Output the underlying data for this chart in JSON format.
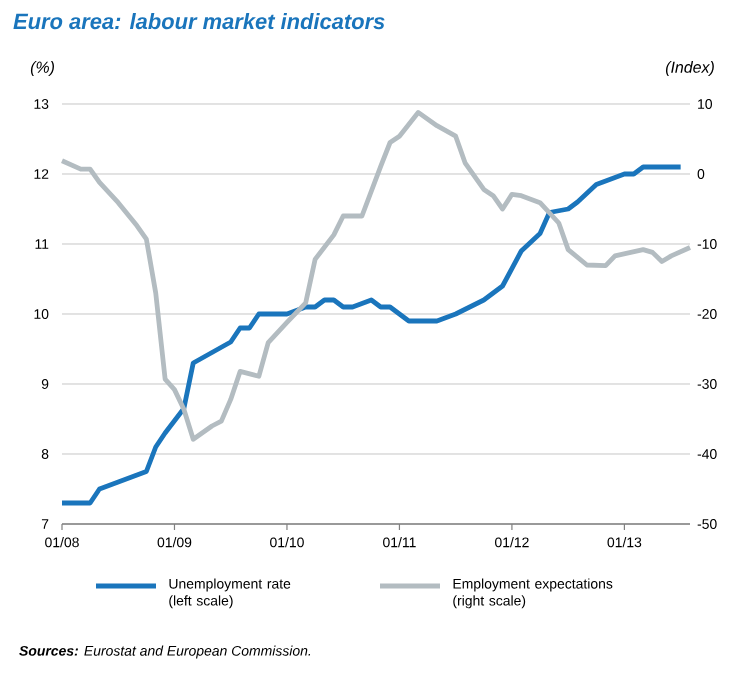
{
  "chart_data": {
    "type": "line",
    "title": "Euro area: labour market indicators",
    "ylabel": "(%)",
    "y2label": "(Index)",
    "annotations": [
      "**Sources:** Eurostat and European Commission."
    ],
    "xlim": [
      "2008-01",
      "2013-08"
    ],
    "ylim": [
      7,
      13
    ],
    "y2lim": [
      -50,
      10
    ],
    "xticks": [
      {
        "value": "2008-01",
        "label": "01/08"
      },
      {
        "value": "2009-01",
        "label": "01/09"
      },
      {
        "value": "2010-01",
        "label": "01/10"
      },
      {
        "value": "2011-01",
        "label": "01/11"
      },
      {
        "value": "2012-01",
        "label": "01/12"
      },
      {
        "value": "2013-01",
        "label": "01/13"
      }
    ],
    "yticks": [
      7,
      8,
      9,
      10,
      11,
      12,
      13
    ],
    "y2ticks": [
      -50,
      -40,
      -30,
      -20,
      -10,
      0,
      10
    ],
    "grid": "y",
    "legend": "bottom",
    "series": [
      {
        "name": "Unemployment rate (left scale)",
        "color": "#1a75bc",
        "x": [
          "2008-01",
          "2008-04",
          "2008-05",
          "2008-07",
          "2008-09",
          "2008-10",
          "2008-11",
          "2008-12",
          "2009-02",
          "2009-03",
          "2009-05",
          "2009-07",
          "2009-08",
          "2009-09",
          "2009-10",
          "2010-01",
          "2010-03",
          "2010-04",
          "2010-05",
          "2010-06",
          "2010-07",
          "2010-08",
          "2010-10",
          "2010-11",
          "2010-12",
          "2011-02",
          "2011-05",
          "2011-07",
          "2011-10",
          "2011-12",
          "2012-02",
          "2012-04",
          "2012-05",
          "2012-07",
          "2012-08",
          "2012-10",
          "2013-01",
          "2013-02",
          "2013-03",
          "2013-07"
        ],
        "values": [
          7.3,
          7.3,
          7.5,
          7.6,
          7.7,
          7.75,
          8.1,
          8.3,
          8.65,
          9.3,
          9.45,
          9.6,
          9.8,
          9.8,
          10.0,
          10.0,
          10.1,
          10.1,
          10.2,
          10.2,
          10.1,
          10.1,
          10.2,
          10.1,
          10.1,
          9.9,
          9.9,
          10.0,
          10.2,
          10.4,
          10.9,
          11.15,
          11.45,
          11.5,
          11.6,
          11.85,
          12.0,
          12.0,
          12.1,
          12.1
        ]
      },
      {
        "name": "Employment expectations (right scale)",
        "color": "#b3bcc1",
        "axis": "y2",
        "x": [
          "2008-01",
          "2008-03",
          "2008-04",
          "2008-05",
          "2008-07",
          "2008-09",
          "2008-10",
          "2008-11",
          "2008-12",
          "2009-01",
          "2009-02",
          "2009-03",
          "2009-05",
          "2009-06",
          "2009-07",
          "2009-08",
          "2009-10",
          "2009-11",
          "2010-01",
          "2010-03",
          "2010-04",
          "2010-06",
          "2010-07",
          "2010-09",
          "2010-11",
          "2010-12",
          "2011-01",
          "2011-03",
          "2011-05",
          "2011-07",
          "2011-08",
          "2011-10",
          "2011-11",
          "2011-12",
          "2012-01",
          "2012-02",
          "2012-04",
          "2012-06",
          "2012-07",
          "2012-09",
          "2012-11",
          "2012-12",
          "2013-03",
          "2013-04",
          "2013-05",
          "2013-06",
          "2013-08"
        ],
        "values": [
          1.9,
          0.7,
          0.7,
          -1.2,
          -4.1,
          -7.4,
          -9.3,
          -17,
          -29.3,
          -30.8,
          -33.6,
          -37.9,
          -36,
          -35.3,
          -32.2,
          -28.2,
          -28.9,
          -24.1,
          -21.2,
          -18.4,
          -12.2,
          -8.7,
          -6,
          -6,
          1.1,
          4.5,
          5.4,
          8.8,
          6.9,
          5.4,
          1.6,
          -2.2,
          -3.1,
          -5,
          -2.9,
          -3.1,
          -4.1,
          -7,
          -10.8,
          -13,
          -13.1,
          -11.7,
          -10.8,
          -11.2,
          -12.5,
          -11.7,
          -10.5
        ]
      }
    ]
  }
}
